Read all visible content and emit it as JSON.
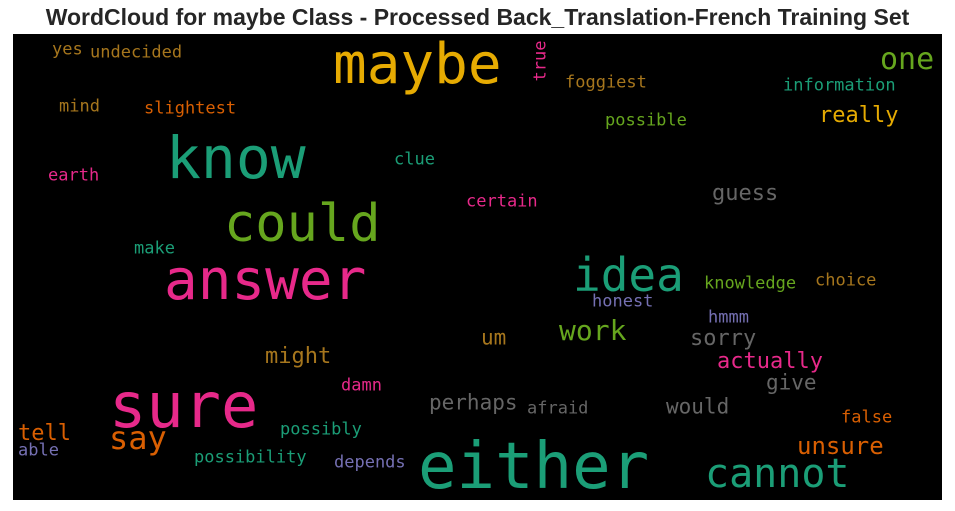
{
  "title": "WordCloud for maybe Class - Processed Back_Translation-French Training Set",
  "colors": {
    "background": "#000000",
    "green": "#1b9e77",
    "orange": "#d95f02",
    "purple": "#7570b3",
    "magenta": "#e7298a",
    "lime": "#66a61e",
    "gold": "#e6ab02",
    "brown": "#a6761d",
    "grey": "#666666"
  },
  "words": [
    {
      "text": "maybe",
      "color": "gold"
    },
    {
      "text": "know",
      "color": "green"
    },
    {
      "text": "could",
      "color": "lime"
    },
    {
      "text": "answer",
      "color": "magenta"
    },
    {
      "text": "sure",
      "color": "magenta"
    },
    {
      "text": "either",
      "color": "green"
    },
    {
      "text": "idea",
      "color": "green"
    },
    {
      "text": "cannot",
      "color": "green"
    },
    {
      "text": "say",
      "color": "orange"
    },
    {
      "text": "one",
      "color": "lime"
    },
    {
      "text": "work",
      "color": "lime"
    },
    {
      "text": "really",
      "color": "gold"
    },
    {
      "text": "unsure",
      "color": "orange"
    },
    {
      "text": "guess",
      "color": "grey"
    },
    {
      "text": "might",
      "color": "brown"
    },
    {
      "text": "actually",
      "color": "magenta"
    },
    {
      "text": "sorry",
      "color": "grey"
    },
    {
      "text": "perhaps",
      "color": "grey"
    },
    {
      "text": "would",
      "color": "grey"
    },
    {
      "text": "give",
      "color": "grey"
    },
    {
      "text": "tell",
      "color": "orange"
    },
    {
      "text": "um",
      "color": "brown"
    },
    {
      "text": "information",
      "color": "green"
    },
    {
      "text": "possible",
      "color": "lime"
    },
    {
      "text": "foggiest",
      "color": "brown"
    },
    {
      "text": "undecided",
      "color": "brown"
    },
    {
      "text": "slightest",
      "color": "orange"
    },
    {
      "text": "clue",
      "color": "green"
    },
    {
      "text": "certain",
      "color": "magenta"
    },
    {
      "text": "knowledge",
      "color": "lime"
    },
    {
      "text": "choice",
      "color": "brown"
    },
    {
      "text": "honest",
      "color": "purple"
    },
    {
      "text": "hmmm",
      "color": "purple"
    },
    {
      "text": "possibly",
      "color": "green"
    },
    {
      "text": "possibility",
      "color": "green"
    },
    {
      "text": "depends",
      "color": "purple"
    },
    {
      "text": "afraid",
      "color": "grey"
    },
    {
      "text": "damn",
      "color": "magenta"
    },
    {
      "text": "false",
      "color": "orange"
    },
    {
      "text": "make",
      "color": "green"
    },
    {
      "text": "earth",
      "color": "magenta"
    },
    {
      "text": "mind",
      "color": "brown"
    },
    {
      "text": "yes",
      "color": "brown"
    },
    {
      "text": "able",
      "color": "purple"
    },
    {
      "text": "true",
      "color": "magenta"
    }
  ]
}
